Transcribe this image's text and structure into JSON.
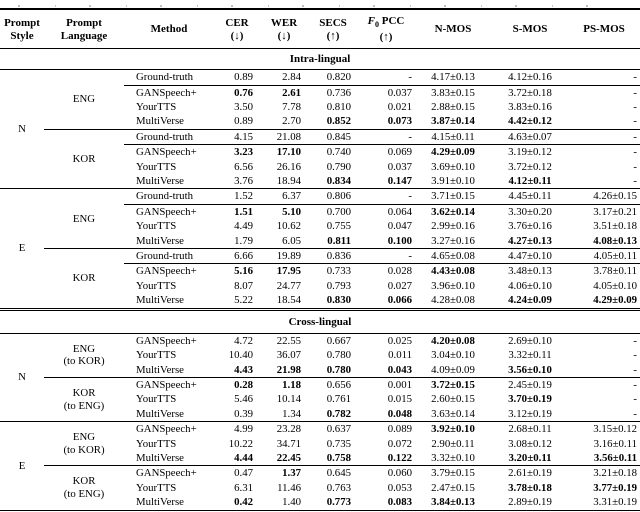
{
  "table": {
    "columns": [
      {
        "key": "style",
        "lines": [
          "Prompt",
          "Style"
        ]
      },
      {
        "key": "language",
        "lines": [
          "Prompt",
          "Language"
        ]
      },
      {
        "key": "method",
        "lines": [
          "Method"
        ]
      },
      {
        "key": "cer",
        "lines": [
          "CER",
          "(↓)"
        ]
      },
      {
        "key": "wer",
        "lines": [
          "WER",
          "(↓)"
        ]
      },
      {
        "key": "secs",
        "lines": [
          "SECS",
          "(↑)"
        ]
      },
      {
        "key": "f0pcc",
        "lines": [
          "F0 PCC",
          "(↑)"
        ],
        "f0": true
      },
      {
        "key": "nmos",
        "lines": [
          "N-MOS"
        ]
      },
      {
        "key": "smos",
        "lines": [
          "S-MOS"
        ]
      },
      {
        "key": "psmos",
        "lines": [
          "PS-MOS"
        ]
      }
    ],
    "value_keys": [
      "cer",
      "wer",
      "secs",
      "f0pcc",
      "nmos",
      "smos",
      "psmos"
    ],
    "sections": [
      {
        "title": "Intra-lingual",
        "double_top": false,
        "groups": [
          {
            "style": "N",
            "style_span": 8,
            "language": [
              "ENG"
            ],
            "rows": [
              {
                "m": "Ground-truth",
                "v": [
                  "0.89",
                  "2.84",
                  "0.820",
                  "-",
                  "4.17±0.13",
                  "4.12±0.16",
                  "-"
                ],
                "b": [],
                "sep": false
              },
              {
                "m": "GANSpeech+",
                "v": [
                  "0.76",
                  "2.61",
                  "0.736",
                  "0.037",
                  "3.83±0.15",
                  "3.72±0.18",
                  "-"
                ],
                "b": [
                  0,
                  1
                ],
                "sep": true
              },
              {
                "m": "YourTTS",
                "v": [
                  "3.50",
                  "7.78",
                  "0.810",
                  "0.021",
                  "2.88±0.15",
                  "3.83±0.16",
                  "-"
                ],
                "b": [],
                "sep": false
              },
              {
                "m": "MultiVerse",
                "v": [
                  "0.89",
                  "2.70",
                  "0.852",
                  "0.073",
                  "3.87±0.14",
                  "4.42±0.12",
                  "-"
                ],
                "b": [
                  2,
                  3,
                  4,
                  5
                ],
                "sep": false
              }
            ]
          },
          {
            "language": [
              "KOR"
            ],
            "rows": [
              {
                "m": "Ground-truth",
                "v": [
                  "4.15",
                  "21.08",
                  "0.845",
                  "-",
                  "4.15±0.11",
                  "4.63±0.07",
                  "-"
                ],
                "b": [],
                "sep": true
              },
              {
                "m": "GANSpeech+",
                "v": [
                  "3.23",
                  "17.10",
                  "0.740",
                  "0.069",
                  "4.29±0.09",
                  "3.19±0.12",
                  "-"
                ],
                "b": [
                  0,
                  1,
                  4
                ],
                "sep": true
              },
              {
                "m": "YourTTS",
                "v": [
                  "6.56",
                  "26.16",
                  "0.790",
                  "0.037",
                  "3.69±0.10",
                  "3.72±0.12",
                  "-"
                ],
                "b": [],
                "sep": false
              },
              {
                "m": "MultiVerse",
                "v": [
                  "3.76",
                  "18.94",
                  "0.834",
                  "0.147",
                  "3.91±0.10",
                  "4.12±0.11",
                  "-"
                ],
                "b": [
                  2,
                  3,
                  5
                ],
                "sep": false
              }
            ]
          },
          {
            "style": "E",
            "style_span": 8,
            "language": [
              "ENG"
            ],
            "rows": [
              {
                "m": "Ground-truth",
                "v": [
                  "1.52",
                  "6.37",
                  "0.806",
                  "-",
                  "3.71±0.15",
                  "4.45±0.11",
                  "4.26±0.15"
                ],
                "b": [],
                "sep": true
              },
              {
                "m": "GANSpeech+",
                "v": [
                  "1.51",
                  "5.10",
                  "0.700",
                  "0.064",
                  "3.62±0.14",
                  "3.30±0.20",
                  "3.17±0.21"
                ],
                "b": [
                  0,
                  1,
                  4
                ],
                "sep": true
              },
              {
                "m": "YourTTS",
                "v": [
                  "4.49",
                  "10.62",
                  "0.755",
                  "0.047",
                  "2.99±0.16",
                  "3.76±0.16",
                  "3.51±0.18"
                ],
                "b": [],
                "sep": false
              },
              {
                "m": "MultiVerse",
                "v": [
                  "1.79",
                  "6.05",
                  "0.811",
                  "0.100",
                  "3.27±0.16",
                  "4.27±0.13",
                  "4.08±0.13"
                ],
                "b": [
                  2,
                  3,
                  5,
                  6
                ],
                "sep": false
              }
            ]
          },
          {
            "language": [
              "KOR"
            ],
            "rows": [
              {
                "m": "Ground-truth",
                "v": [
                  "6.66",
                  "19.89",
                  "0.836",
                  "-",
                  "4.65±0.08",
                  "4.47±0.10",
                  "4.05±0.11"
                ],
                "b": [],
                "sep": true
              },
              {
                "m": "GANSpeech+",
                "v": [
                  "5.16",
                  "17.95",
                  "0.733",
                  "0.028",
                  "4.43±0.08",
                  "3.48±0.13",
                  "3.78±0.11"
                ],
                "b": [
                  0,
                  1,
                  4
                ],
                "sep": true
              },
              {
                "m": "YourTTS",
                "v": [
                  "8.07",
                  "24.77",
                  "0.793",
                  "0.027",
                  "3.96±0.10",
                  "4.06±0.10",
                  "4.05±0.10"
                ],
                "b": [],
                "sep": false
              },
              {
                "m": "MultiVerse",
                "v": [
                  "5.22",
                  "18.54",
                  "0.830",
                  "0.066",
                  "4.28±0.08",
                  "4.24±0.09",
                  "4.29±0.09"
                ],
                "b": [
                  2,
                  3,
                  5,
                  6
                ],
                "sep": false
              }
            ]
          }
        ]
      },
      {
        "title": "Cross-lingual",
        "double_top": true,
        "groups": [
          {
            "style": "N",
            "style_span": 6,
            "language": [
              "ENG",
              "(to KOR)"
            ],
            "rows": [
              {
                "m": "GANSpeech+",
                "v": [
                  "4.72",
                  "22.55",
                  "0.667",
                  "0.025",
                  "4.20±0.08",
                  "2.69±0.10",
                  "-"
                ],
                "b": [
                  4
                ],
                "sep": false
              },
              {
                "m": "YourTTS",
                "v": [
                  "10.40",
                  "36.07",
                  "0.780",
                  "0.011",
                  "3.04±0.10",
                  "3.32±0.11",
                  "-"
                ],
                "b": [],
                "sep": false
              },
              {
                "m": "MultiVerse",
                "v": [
                  "4.43",
                  "21.98",
                  "0.780",
                  "0.043",
                  "4.09±0.09",
                  "3.56±0.10",
                  "-"
                ],
                "b": [
                  0,
                  1,
                  2,
                  3,
                  5
                ],
                "sep": false
              }
            ]
          },
          {
            "language": [
              "KOR",
              "(to ENG)"
            ],
            "rows": [
              {
                "m": "GANSpeech+",
                "v": [
                  "0.28",
                  "1.18",
                  "0.656",
                  "0.001",
                  "3.72±0.15",
                  "2.45±0.19",
                  "-"
                ],
                "b": [
                  0,
                  1,
                  4
                ],
                "sep": true
              },
              {
                "m": "YourTTS",
                "v": [
                  "5.46",
                  "10.14",
                  "0.761",
                  "0.015",
                  "2.60±0.15",
                  "3.70±0.19",
                  "-"
                ],
                "b": [
                  5
                ],
                "sep": false
              },
              {
                "m": "MultiVerse",
                "v": [
                  "0.39",
                  "1.34",
                  "0.782",
                  "0.048",
                  "3.63±0.14",
                  "3.12±0.19",
                  "-"
                ],
                "b": [
                  2,
                  3
                ],
                "sep": false
              }
            ]
          },
          {
            "style": "E",
            "style_span": 6,
            "language": [
              "ENG",
              "(to KOR)"
            ],
            "rows": [
              {
                "m": "GANSpeech+",
                "v": [
                  "4.99",
                  "23.28",
                  "0.637",
                  "0.089",
                  "3.92±0.10",
                  "2.68±0.11",
                  "3.15±0.12"
                ],
                "b": [
                  4
                ],
                "sep": true
              },
              {
                "m": "YourTTS",
                "v": [
                  "10.22",
                  "34.71",
                  "0.735",
                  "0.072",
                  "2.90±0.11",
                  "3.08±0.12",
                  "3.16±0.11"
                ],
                "b": [],
                "sep": false
              },
              {
                "m": "MultiVerse",
                "v": [
                  "4.44",
                  "22.45",
                  "0.758",
                  "0.122",
                  "3.32±0.10",
                  "3.20±0.11",
                  "3.56±0.11"
                ],
                "b": [
                  0,
                  1,
                  2,
                  3,
                  5,
                  6
                ],
                "sep": false
              }
            ]
          },
          {
            "language": [
              "KOR",
              "(to ENG)"
            ],
            "rows": [
              {
                "m": "GANSpeech+",
                "v": [
                  "0.47",
                  "1.37",
                  "0.645",
                  "0.060",
                  "3.79±0.15",
                  "2.61±0.19",
                  "3.21±0.18"
                ],
                "b": [
                  1
                ],
                "sep": true
              },
              {
                "m": "YourTTS",
                "v": [
                  "6.31",
                  "11.46",
                  "0.763",
                  "0.053",
                  "2.47±0.15",
                  "3.78±0.18",
                  "3.77±0.19"
                ],
                "b": [
                  5,
                  6
                ],
                "sep": false
              },
              {
                "m": "MultiVerse",
                "v": [
                  "0.42",
                  "1.40",
                  "0.773",
                  "0.083",
                  "3.84±0.13",
                  "2.89±0.19",
                  "3.31±0.19"
                ],
                "b": [
                  0,
                  2,
                  3,
                  4
                ],
                "sep": false
              }
            ]
          }
        ]
      }
    ]
  }
}
